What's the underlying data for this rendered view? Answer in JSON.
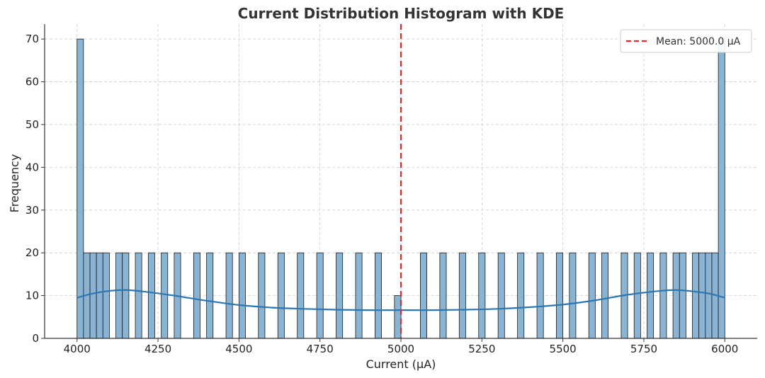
{
  "chart_data": {
    "type": "bar",
    "title": "Current Distribution Histogram with KDE",
    "xlabel": "Current (μA)",
    "ylabel": "Frequency",
    "xlim": [
      3900,
      6100
    ],
    "ylim": [
      0,
      73.5
    ],
    "xticks": [
      4000,
      4250,
      4500,
      4750,
      5000,
      5250,
      5500,
      5750,
      6000
    ],
    "yticks": [
      0,
      10,
      20,
      30,
      40,
      50,
      60,
      70
    ],
    "grid": true,
    "bin_width": 20,
    "bins": [
      {
        "x": 4000,
        "value": 70
      },
      {
        "x": 4020,
        "value": 20
      },
      {
        "x": 4040,
        "value": 20
      },
      {
        "x": 4060,
        "value": 20
      },
      {
        "x": 4080,
        "value": 20
      },
      {
        "x": 4120,
        "value": 20
      },
      {
        "x": 4140,
        "value": 20
      },
      {
        "x": 4180,
        "value": 20
      },
      {
        "x": 4220,
        "value": 20
      },
      {
        "x": 4260,
        "value": 20
      },
      {
        "x": 4300,
        "value": 20
      },
      {
        "x": 4360,
        "value": 20
      },
      {
        "x": 4400,
        "value": 20
      },
      {
        "x": 4460,
        "value": 20
      },
      {
        "x": 4500,
        "value": 20
      },
      {
        "x": 4560,
        "value": 20
      },
      {
        "x": 4620,
        "value": 20
      },
      {
        "x": 4680,
        "value": 20
      },
      {
        "x": 4740,
        "value": 20
      },
      {
        "x": 4800,
        "value": 20
      },
      {
        "x": 4860,
        "value": 20
      },
      {
        "x": 4920,
        "value": 20
      },
      {
        "x": 4980,
        "value": 10
      },
      {
        "x": 5060,
        "value": 20
      },
      {
        "x": 5120,
        "value": 20
      },
      {
        "x": 5180,
        "value": 20
      },
      {
        "x": 5240,
        "value": 20
      },
      {
        "x": 5300,
        "value": 20
      },
      {
        "x": 5360,
        "value": 20
      },
      {
        "x": 5420,
        "value": 20
      },
      {
        "x": 5480,
        "value": 20
      },
      {
        "x": 5520,
        "value": 20
      },
      {
        "x": 5580,
        "value": 20
      },
      {
        "x": 5620,
        "value": 20
      },
      {
        "x": 5680,
        "value": 20
      },
      {
        "x": 5720,
        "value": 20
      },
      {
        "x": 5760,
        "value": 20
      },
      {
        "x": 5800,
        "value": 20
      },
      {
        "x": 5840,
        "value": 20
      },
      {
        "x": 5860,
        "value": 20
      },
      {
        "x": 5900,
        "value": 20
      },
      {
        "x": 5920,
        "value": 20
      },
      {
        "x": 5940,
        "value": 20
      },
      {
        "x": 5960,
        "value": 20
      },
      {
        "x": 5980,
        "value": 70
      }
    ],
    "kde": {
      "x": [
        4000,
        4050,
        4100,
        4150,
        4200,
        4300,
        4400,
        4500,
        4600,
        4700,
        4800,
        4900,
        5000,
        5100,
        5200,
        5300,
        5400,
        5500,
        5600,
        5700,
        5800,
        5850,
        5900,
        5950,
        6000
      ],
      "y": [
        9.5,
        10.5,
        11.1,
        11.3,
        11.0,
        10.0,
        8.8,
        7.8,
        7.2,
        6.9,
        6.7,
        6.6,
        6.6,
        6.6,
        6.7,
        6.9,
        7.3,
        7.9,
        8.9,
        10.2,
        11.1,
        11.3,
        11.0,
        10.5,
        9.5
      ],
      "color": "#2b77b4"
    },
    "mean_line": {
      "x": 5000,
      "label": "Mean: 5000.0 μA",
      "color": "#e8272b"
    },
    "bar_fill": "#8ab4d4",
    "bar_edge": "#1a1a1a",
    "legend": {
      "placement": "top-right"
    }
  }
}
